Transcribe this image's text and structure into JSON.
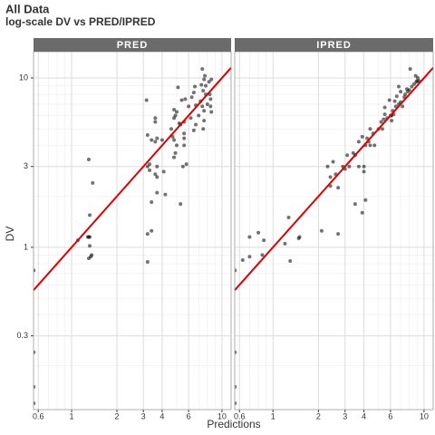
{
  "chart_data": {
    "type": "scatter",
    "title": "All Data",
    "subtitle": "log-scale DV vs PRED/IPRED",
    "xlabel": "Predictions",
    "ylabel": "DV",
    "log_x": true,
    "log_y": true,
    "grid": true,
    "color": "#000000",
    "line_color": "#e00000",
    "xlim": [
      0.558,
      11.5
    ],
    "ylim": [
      0.11,
      14.3
    ],
    "xticks": [
      0.6,
      1,
      2,
      3,
      4,
      6,
      10
    ],
    "yticks": [
      0.3,
      1,
      3,
      10
    ],
    "minor_xticks": [
      0.7,
      0.8,
      0.9,
      5,
      7,
      8,
      9
    ],
    "minor_yticks": [
      0.2,
      0.4,
      0.5,
      0.6,
      0.7,
      0.8,
      0.9,
      2,
      4,
      5,
      6,
      7,
      8,
      9
    ],
    "panels": [
      {
        "name": "PRED",
        "x": [
          1.1,
          1.3,
          1.32,
          1.32,
          1.3,
          1.38,
          1.34,
          1.36,
          1.3,
          1.32,
          1.28,
          3.15,
          3.2,
          3.3,
          3.2,
          3.3,
          3.4,
          3.6,
          3.6,
          3.7,
          3.6,
          3.7,
          3.6,
          3.7,
          3.7,
          3.4,
          3.2,
          3.4,
          3.2,
          4.0,
          4.1,
          4.2,
          4.6,
          4.7,
          4.8,
          4.8,
          4.9,
          4.8,
          4.9,
          5.0,
          4.8,
          5.0,
          5.1,
          5.2,
          5.3,
          5.4,
          5.6,
          5.7,
          5.6,
          5.6,
          5.8,
          5.5,
          5.3,
          5.6,
          6.0,
          6.2,
          6.3,
          6.5,
          6.7,
          6.7,
          6.5,
          6.6,
          7.0,
          7.2,
          7.5,
          7.3,
          7.6,
          7.4,
          7.6,
          7.4,
          7.5,
          7.6,
          7.8,
          8.0,
          8.2,
          8.3,
          8.4,
          8.4,
          8.5,
          8.5,
          7.7,
          7.8,
          0.56,
          0.56,
          0.56,
          0.56
        ],
        "y": [
          1.1,
          1.15,
          1.15,
          1.55,
          3.3,
          2.4,
          0.88,
          0.9,
          0.86,
          1.02,
          1.15,
          7.4,
          4.6,
          3.1,
          3.0,
          2.85,
          4.3,
          5.8,
          5.5,
          4.4,
          4.2,
          3.0,
          2.7,
          2.6,
          2.1,
          1.85,
          1.2,
          1.25,
          0.82,
          4.3,
          2.8,
          2.05,
          5.0,
          4.5,
          4.3,
          5.8,
          6.0,
          3.4,
          3.6,
          4.0,
          6.5,
          6.3,
          8.8,
          5.4,
          5.3,
          7.4,
          5.5,
          7.5,
          4.7,
          4.0,
          3.1,
          3.0,
          1.8,
          4.4,
          6.8,
          5.8,
          7.7,
          8.2,
          5.3,
          6.9,
          4.9,
          8.9,
          6.0,
          7.3,
          8.4,
          9.1,
          9.8,
          11.3,
          6.4,
          6.8,
          5.0,
          5.6,
          8.0,
          7.0,
          9.5,
          8.0,
          7.5,
          6.8,
          6.3,
          9.8,
          10.3,
          9.0,
          0.73,
          0.24,
          0.15,
          0.12
        ]
      },
      {
        "name": "IPRED",
        "x": [
          0.63,
          0.7,
          0.7,
          0.8,
          0.85,
          0.87,
          1.2,
          1.3,
          1.27,
          1.5,
          1.48,
          2.1,
          2.3,
          2.4,
          2.4,
          2.5,
          2.6,
          2.7,
          2.7,
          2.9,
          3.0,
          3.1,
          3.2,
          3.4,
          3.5,
          3.5,
          3.7,
          3.7,
          3.9,
          3.9,
          4.0,
          4.0,
          4.1,
          4.1,
          4.2,
          4.3,
          4.4,
          4.4,
          4.6,
          4.7,
          5.0,
          5.2,
          5.3,
          5.4,
          5.5,
          5.5,
          5.7,
          5.9,
          6.0,
          6.1,
          6.2,
          6.3,
          6.4,
          6.5,
          6.6,
          6.8,
          7.0,
          7.0,
          7.2,
          7.4,
          7.5,
          7.7,
          7.8,
          8.0,
          8.1,
          8.3,
          8.6,
          8.8,
          9.1,
          9.3,
          9.0,
          8.9,
          6.8,
          6.1,
          0.56,
          0.56,
          0.56,
          0.56
        ],
        "y": [
          0.84,
          0.88,
          1.15,
          1.22,
          0.9,
          1.1,
          1.05,
          0.83,
          1.5,
          1.15,
          1.13,
          1.25,
          3.0,
          2.3,
          2.6,
          3.2,
          2.7,
          2.25,
          1.2,
          3.0,
          2.9,
          3.5,
          3.0,
          3.6,
          3.5,
          1.8,
          3.0,
          4.2,
          4.5,
          1.6,
          2.8,
          3.0,
          1.9,
          4.0,
          4.4,
          4.2,
          4.0,
          5.0,
          4.7,
          4.0,
          5.0,
          5.5,
          5.0,
          5.7,
          6.1,
          6.7,
          5.8,
          7.4,
          6.0,
          5.6,
          6.4,
          6.1,
          7.3,
          6.8,
          7.8,
          7.0,
          7.2,
          8.3,
          6.8,
          7.7,
          8.0,
          8.6,
          8.3,
          8.5,
          11.3,
          8.9,
          9.2,
          10.3,
          10.0,
          9.6,
          9.6,
          9.5,
          8.9,
          6.0,
          0.73,
          0.24,
          0.15,
          0.12
        ]
      }
    ]
  }
}
